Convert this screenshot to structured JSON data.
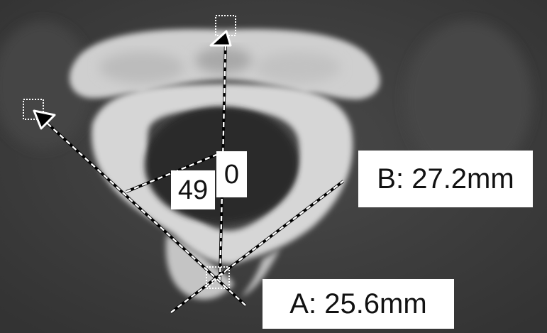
{
  "image": {
    "kind": "axial CT slice of cervical vertebra with measurement overlay",
    "background_color": "#3c3c3c",
    "bone_color": "#d9d9d9"
  },
  "labels": {
    "angle_value": "49",
    "zero_marker": "0",
    "measurement_b": "B: 27.2mm",
    "measurement_a": "A: 25.6mm"
  },
  "icons": {
    "top_marker": "triangle-handle-icon",
    "left_marker": "triangle-handle-icon",
    "vertex_marker": "crosshair-handle-icon"
  }
}
